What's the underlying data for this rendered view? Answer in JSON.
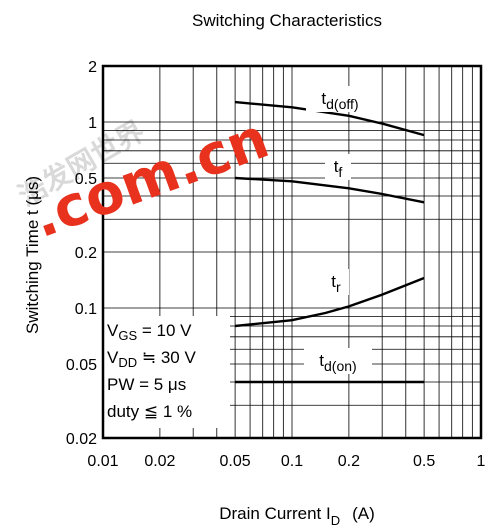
{
  "chart_data": {
    "type": "line",
    "title": "Switching Characteristics",
    "xlabel": "Drain Current   I",
    "xlabel_sub": "D",
    "xlabel_unit": "(A)",
    "ylabel": "Switching Time  t  (μs)",
    "x_scale": "log",
    "y_scale": "log",
    "xlim": [
      0.01,
      1
    ],
    "ylim": [
      0.02,
      2
    ],
    "grid": true,
    "x_ticks": [
      {
        "value": 0.01,
        "label": "0.01"
      },
      {
        "value": 0.02,
        "label": "0.02"
      },
      {
        "value": 0.05,
        "label": "0.05"
      },
      {
        "value": 0.1,
        "label": "0.1"
      },
      {
        "value": 0.2,
        "label": "0.2"
      },
      {
        "value": 0.5,
        "label": "0.5"
      },
      {
        "value": 1,
        "label": "1"
      }
    ],
    "y_ticks": [
      {
        "value": 0.02,
        "label": "0.02"
      },
      {
        "value": 0.05,
        "label": "0.05"
      },
      {
        "value": 0.1,
        "label": "0.1"
      },
      {
        "value": 0.2,
        "label": "0.2"
      },
      {
        "value": 0.5,
        "label": "0.5"
      },
      {
        "value": 1,
        "label": "1"
      },
      {
        "value": 2,
        "label": "2"
      }
    ],
    "series": [
      {
        "name": "td(off)",
        "label_main": "t",
        "label_sub": "d(off)",
        "x": [
          0.05,
          0.1,
          0.2,
          0.3,
          0.5
        ],
        "y": [
          1.28,
          1.2,
          1.08,
          0.98,
          0.85
        ]
      },
      {
        "name": "tf",
        "label_main": "t",
        "label_sub": "f",
        "x": [
          0.05,
          0.1,
          0.2,
          0.3,
          0.5
        ],
        "y": [
          0.5,
          0.48,
          0.44,
          0.41,
          0.37
        ]
      },
      {
        "name": "tr",
        "label_main": "t",
        "label_sub": "r",
        "x": [
          0.05,
          0.1,
          0.15,
          0.2,
          0.3,
          0.5
        ],
        "y": [
          0.08,
          0.086,
          0.094,
          0.102,
          0.118,
          0.145
        ]
      },
      {
        "name": "td(on)",
        "label_main": "t",
        "label_sub": "d(on)",
        "x": [
          0.05,
          0.5
        ],
        "y": [
          0.04,
          0.04
        ]
      }
    ],
    "conditions": [
      {
        "main": "V",
        "sub": "GS",
        "rest": " = 10 V"
      },
      {
        "main": "V",
        "sub": "DD",
        "rest": " ≒ 30 V"
      },
      {
        "main": "PW = 5 μs",
        "sub": "",
        "rest": ""
      },
      {
        "main": "duty ≦ 1 %",
        "sub": "",
        "rest": ""
      }
    ]
  },
  "watermark": {
    "text": ".com.cn",
    "color": "#e8321e",
    "chinese_text": "浩发网世界"
  }
}
